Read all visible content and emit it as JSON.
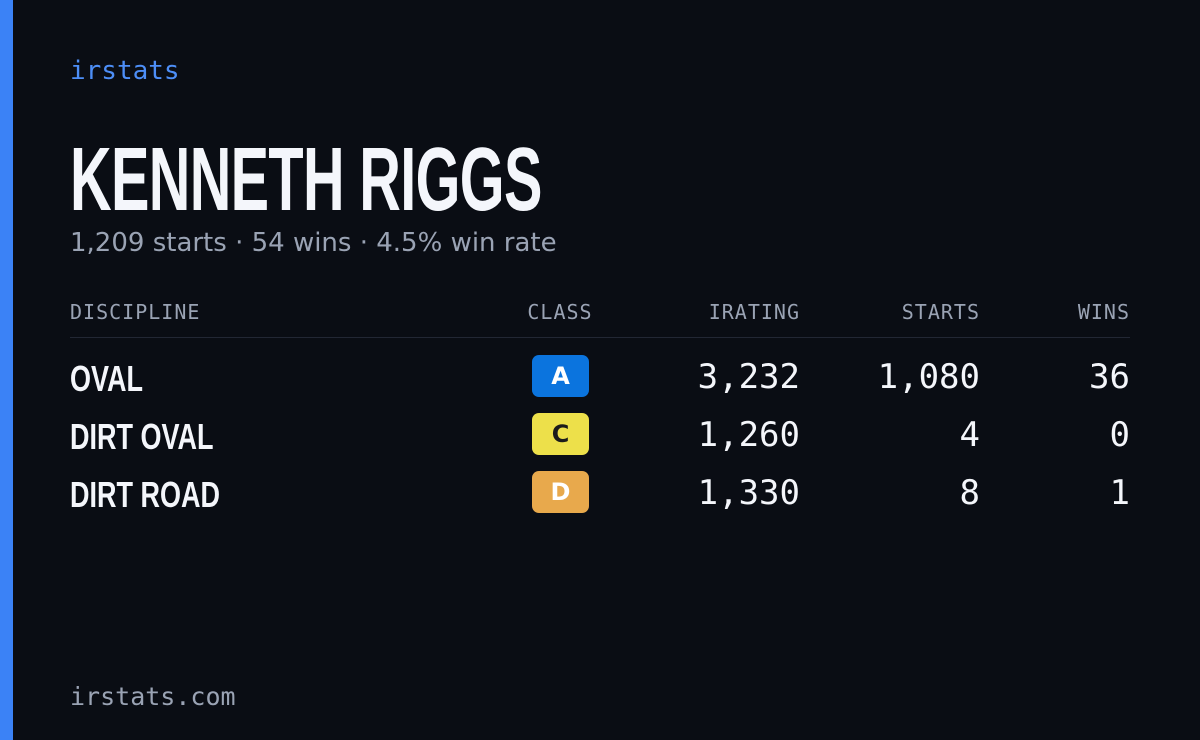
{
  "brand": "irstats",
  "driver": {
    "name": "KENNETH RIGGS",
    "summary": "1,209 starts · 54 wins · 4.5% win rate"
  },
  "table": {
    "headers": [
      "DISCIPLINE",
      "CLASS",
      "IRATING",
      "STARTS",
      "WINS"
    ],
    "rows": [
      {
        "discipline": "OVAL",
        "class": "A",
        "class_color": "#0b74de",
        "irating": "3,232",
        "starts": "1,080",
        "wins": "36"
      },
      {
        "discipline": "DIRT OVAL",
        "class": "C",
        "class_color": "#ede04a",
        "irating": "1,260",
        "starts": "4",
        "wins": "0"
      },
      {
        "discipline": "DIRT ROAD",
        "class": "D",
        "class_color": "#e8a94c",
        "irating": "1,330",
        "starts": "8",
        "wins": "1"
      }
    ]
  },
  "footer": "irstats.com"
}
